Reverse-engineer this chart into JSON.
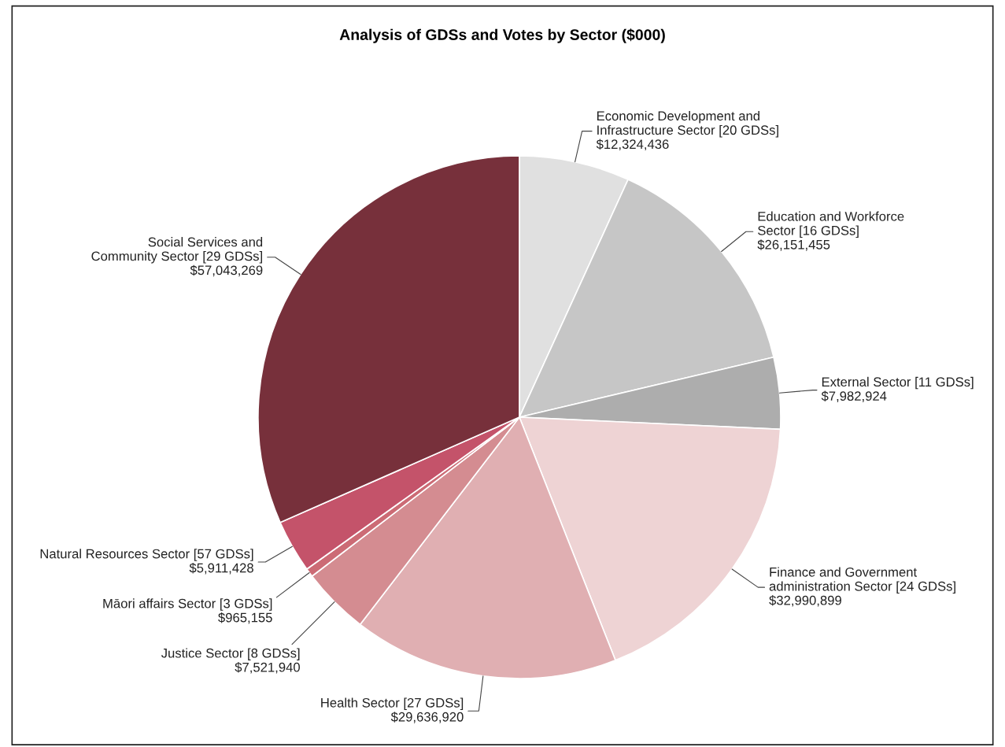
{
  "chart_data": {
    "type": "pie",
    "title": "Analysis of GDSs and Votes by Sector ($000)",
    "categories": [
      "Economic Development and\nInfrastructure Sector [20 GDSs]",
      "Education and Workforce\nSector [16 GDSs]",
      "External Sector [11 GDSs]",
      "Finance and Government\nadministration Sector [24 GDSs]",
      "Health Sector [27 GDSs]",
      "Justice Sector [8 GDSs]",
      "Māori affairs Sector [3 GDSs]",
      "Natural Resources Sector [57 GDSs]",
      "Social Services and\nCommunity Sector [29 GDSs]"
    ],
    "values": [
      12324436,
      26151455,
      7982924,
      32990899,
      29636920,
      7521940,
      965155,
      5911428,
      57043269
    ],
    "value_labels": [
      "$12,324,436",
      "$26,151,455",
      "$7,982,924",
      "$32,990,899",
      "$29,636,920",
      "$7,521,940",
      "$965,155",
      "$5,911,428",
      "$57,043,269"
    ],
    "colors": [
      "#e0e0e0",
      "#c6c6c6",
      "#adadad",
      "#eed3d4",
      "#e0afb2",
      "#d48c91",
      "#cc6b75",
      "#c4536a",
      "#77303b"
    ],
    "legend": false
  }
}
